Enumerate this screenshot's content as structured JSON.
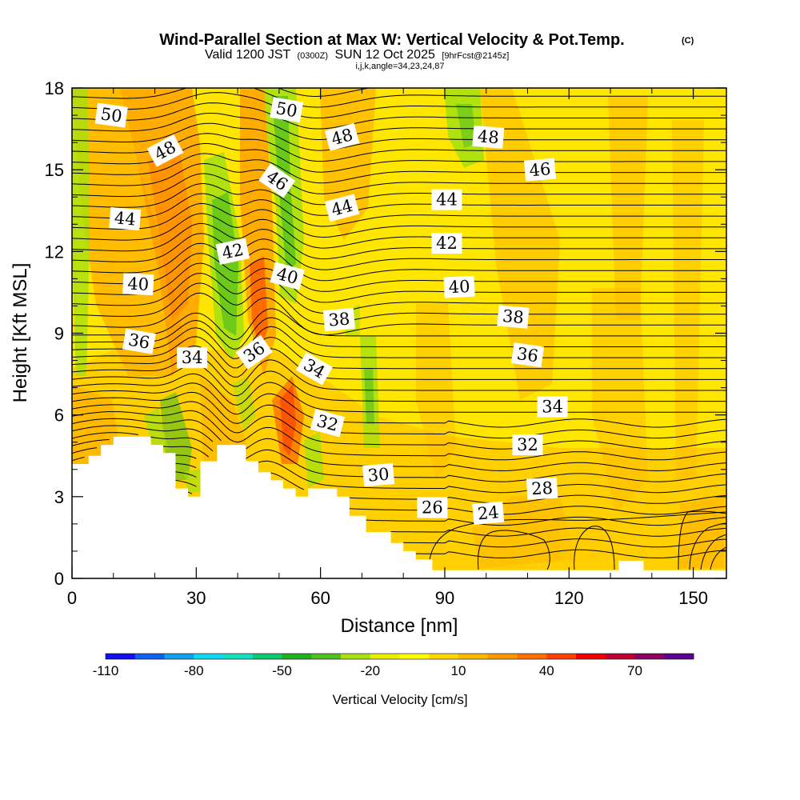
{
  "header": {
    "title": "Wind-Parallel Section at Max W: Vertical Velocity & Pot.Temp.",
    "title_mark": "(C)",
    "valid_prefix": "Valid 1200 JST",
    "valid_utc": "(0300Z)",
    "valid_date": "SUN 12 Oct 2025",
    "forecast": "[9hrFcst@2145z]",
    "grid_info": "i,j,k,angle=34,23,24,87"
  },
  "chart_data": {
    "type": "heatmap",
    "title": "Wind-Parallel Section at Max W: Vertical Velocity & Pot.Temp.",
    "xlabel": "Distance [nm]",
    "ylabel": "Height [Kft MSL]",
    "xlim": [
      0,
      158
    ],
    "ylim": [
      0,
      18
    ],
    "xticks": [
      0,
      30,
      60,
      90,
      120,
      150
    ],
    "yticks": [
      0,
      3,
      6,
      9,
      12,
      15,
      18
    ],
    "colorbar": {
      "label": "Vertical Velocity [cm/s]",
      "range": [
        -110,
        90
      ],
      "tick_values": [
        -110,
        -80,
        -50,
        -20,
        10,
        40,
        70
      ],
      "colors": [
        "#1010f0",
        "#1060f0",
        "#10a0f0",
        "#10d8f0",
        "#10e0c0",
        "#10c870",
        "#20b020",
        "#50c020",
        "#a8e010",
        "#e8f000",
        "#ffff00",
        "#ffd800",
        "#ffb800",
        "#ff9800",
        "#ff7000",
        "#ff4000",
        "#f00000",
        "#c00030",
        "#900060",
        "#600090"
      ]
    },
    "terrain": [
      [
        0,
        4.2
      ],
      [
        4,
        4.2
      ],
      [
        4,
        4.5
      ],
      [
        7,
        4.5
      ],
      [
        7,
        4.9
      ],
      [
        10,
        4.9
      ],
      [
        10,
        5.2
      ],
      [
        19,
        5.2
      ],
      [
        19,
        4.9
      ],
      [
        22,
        4.9
      ],
      [
        22,
        4.6
      ],
      [
        25,
        4.6
      ],
      [
        25,
        3.3
      ],
      [
        28,
        3.3
      ],
      [
        28,
        3.0
      ],
      [
        31,
        3.0
      ],
      [
        31,
        4.3
      ],
      [
        35,
        4.3
      ],
      [
        35,
        4.9
      ],
      [
        42,
        4.9
      ],
      [
        42,
        4.3
      ],
      [
        45,
        4.3
      ],
      [
        45,
        3.9
      ],
      [
        48,
        3.9
      ],
      [
        48,
        3.6
      ],
      [
        51,
        3.6
      ],
      [
        51,
        3.3
      ],
      [
        54,
        3.3
      ],
      [
        54,
        3.0
      ],
      [
        57,
        3.0
      ],
      [
        57,
        3.3
      ],
      [
        64,
        3.3
      ],
      [
        64,
        3.0
      ],
      [
        67,
        3.0
      ],
      [
        67,
        2.3
      ],
      [
        71,
        2.3
      ],
      [
        71,
        1.7
      ],
      [
        77,
        1.7
      ],
      [
        77,
        1.3
      ],
      [
        80,
        1.3
      ],
      [
        80,
        1.0
      ],
      [
        83,
        1.0
      ],
      [
        83,
        0.7
      ],
      [
        87,
        0.7
      ],
      [
        87,
        0.3
      ],
      [
        132,
        0.3
      ],
      [
        132,
        0.65
      ],
      [
        138,
        0.65
      ],
      [
        138,
        0.3
      ],
      [
        158,
        0.3
      ],
      [
        158,
        0
      ],
      [
        0,
        0
      ]
    ],
    "contour_labels": [
      {
        "value": "50",
        "x": 9.5,
        "y": 17.0,
        "angle": 8
      },
      {
        "value": "48",
        "x": 22.5,
        "y": 15.7,
        "angle": -28
      },
      {
        "value": "44",
        "x": 12.8,
        "y": 13.2,
        "angle": 5
      },
      {
        "value": "40",
        "x": 16.0,
        "y": 10.8,
        "angle": 3
      },
      {
        "value": "36",
        "x": 16.2,
        "y": 8.7,
        "angle": 10
      },
      {
        "value": "34",
        "x": 29.0,
        "y": 8.1,
        "angle": 0
      },
      {
        "value": "42",
        "x": 38.8,
        "y": 12.0,
        "angle": -12
      },
      {
        "value": "50",
        "x": 51.8,
        "y": 17.2,
        "angle": 10
      },
      {
        "value": "46",
        "x": 49.5,
        "y": 14.6,
        "angle": 35
      },
      {
        "value": "40",
        "x": 52.0,
        "y": 11.1,
        "angle": 15
      },
      {
        "value": "36",
        "x": 44.0,
        "y": 8.3,
        "angle": -35
      },
      {
        "value": "34",
        "x": 58.5,
        "y": 7.7,
        "angle": 30
      },
      {
        "value": "48",
        "x": 65.2,
        "y": 16.2,
        "angle": -15
      },
      {
        "value": "44",
        "x": 65.2,
        "y": 13.6,
        "angle": -15
      },
      {
        "value": "38",
        "x": 64.5,
        "y": 9.5,
        "angle": -5
      },
      {
        "value": "32",
        "x": 61.7,
        "y": 5.7,
        "angle": 15
      },
      {
        "value": "30",
        "x": 74.0,
        "y": 3.8,
        "angle": -5
      },
      {
        "value": "26",
        "x": 87.0,
        "y": 2.6,
        "angle": 0
      },
      {
        "value": "44",
        "x": 90.5,
        "y": 13.9,
        "angle": 0
      },
      {
        "value": "42",
        "x": 90.5,
        "y": 12.3,
        "angle": 0
      },
      {
        "value": "40",
        "x": 93.5,
        "y": 10.7,
        "angle": -3
      },
      {
        "value": "24",
        "x": 100.5,
        "y": 2.4,
        "angle": -5
      },
      {
        "value": "48",
        "x": 100.5,
        "y": 16.2,
        "angle": 5
      },
      {
        "value": "46",
        "x": 113.0,
        "y": 15.0,
        "angle": -5
      },
      {
        "value": "38",
        "x": 106.5,
        "y": 9.6,
        "angle": 5
      },
      {
        "value": "36",
        "x": 110.0,
        "y": 8.2,
        "angle": 8
      },
      {
        "value": "34",
        "x": 116.0,
        "y": 6.3,
        "angle": 0
      },
      {
        "value": "32",
        "x": 110.0,
        "y": 4.9,
        "angle": 0
      },
      {
        "value": "28",
        "x": 113.5,
        "y": 3.3,
        "angle": -3
      }
    ]
  }
}
